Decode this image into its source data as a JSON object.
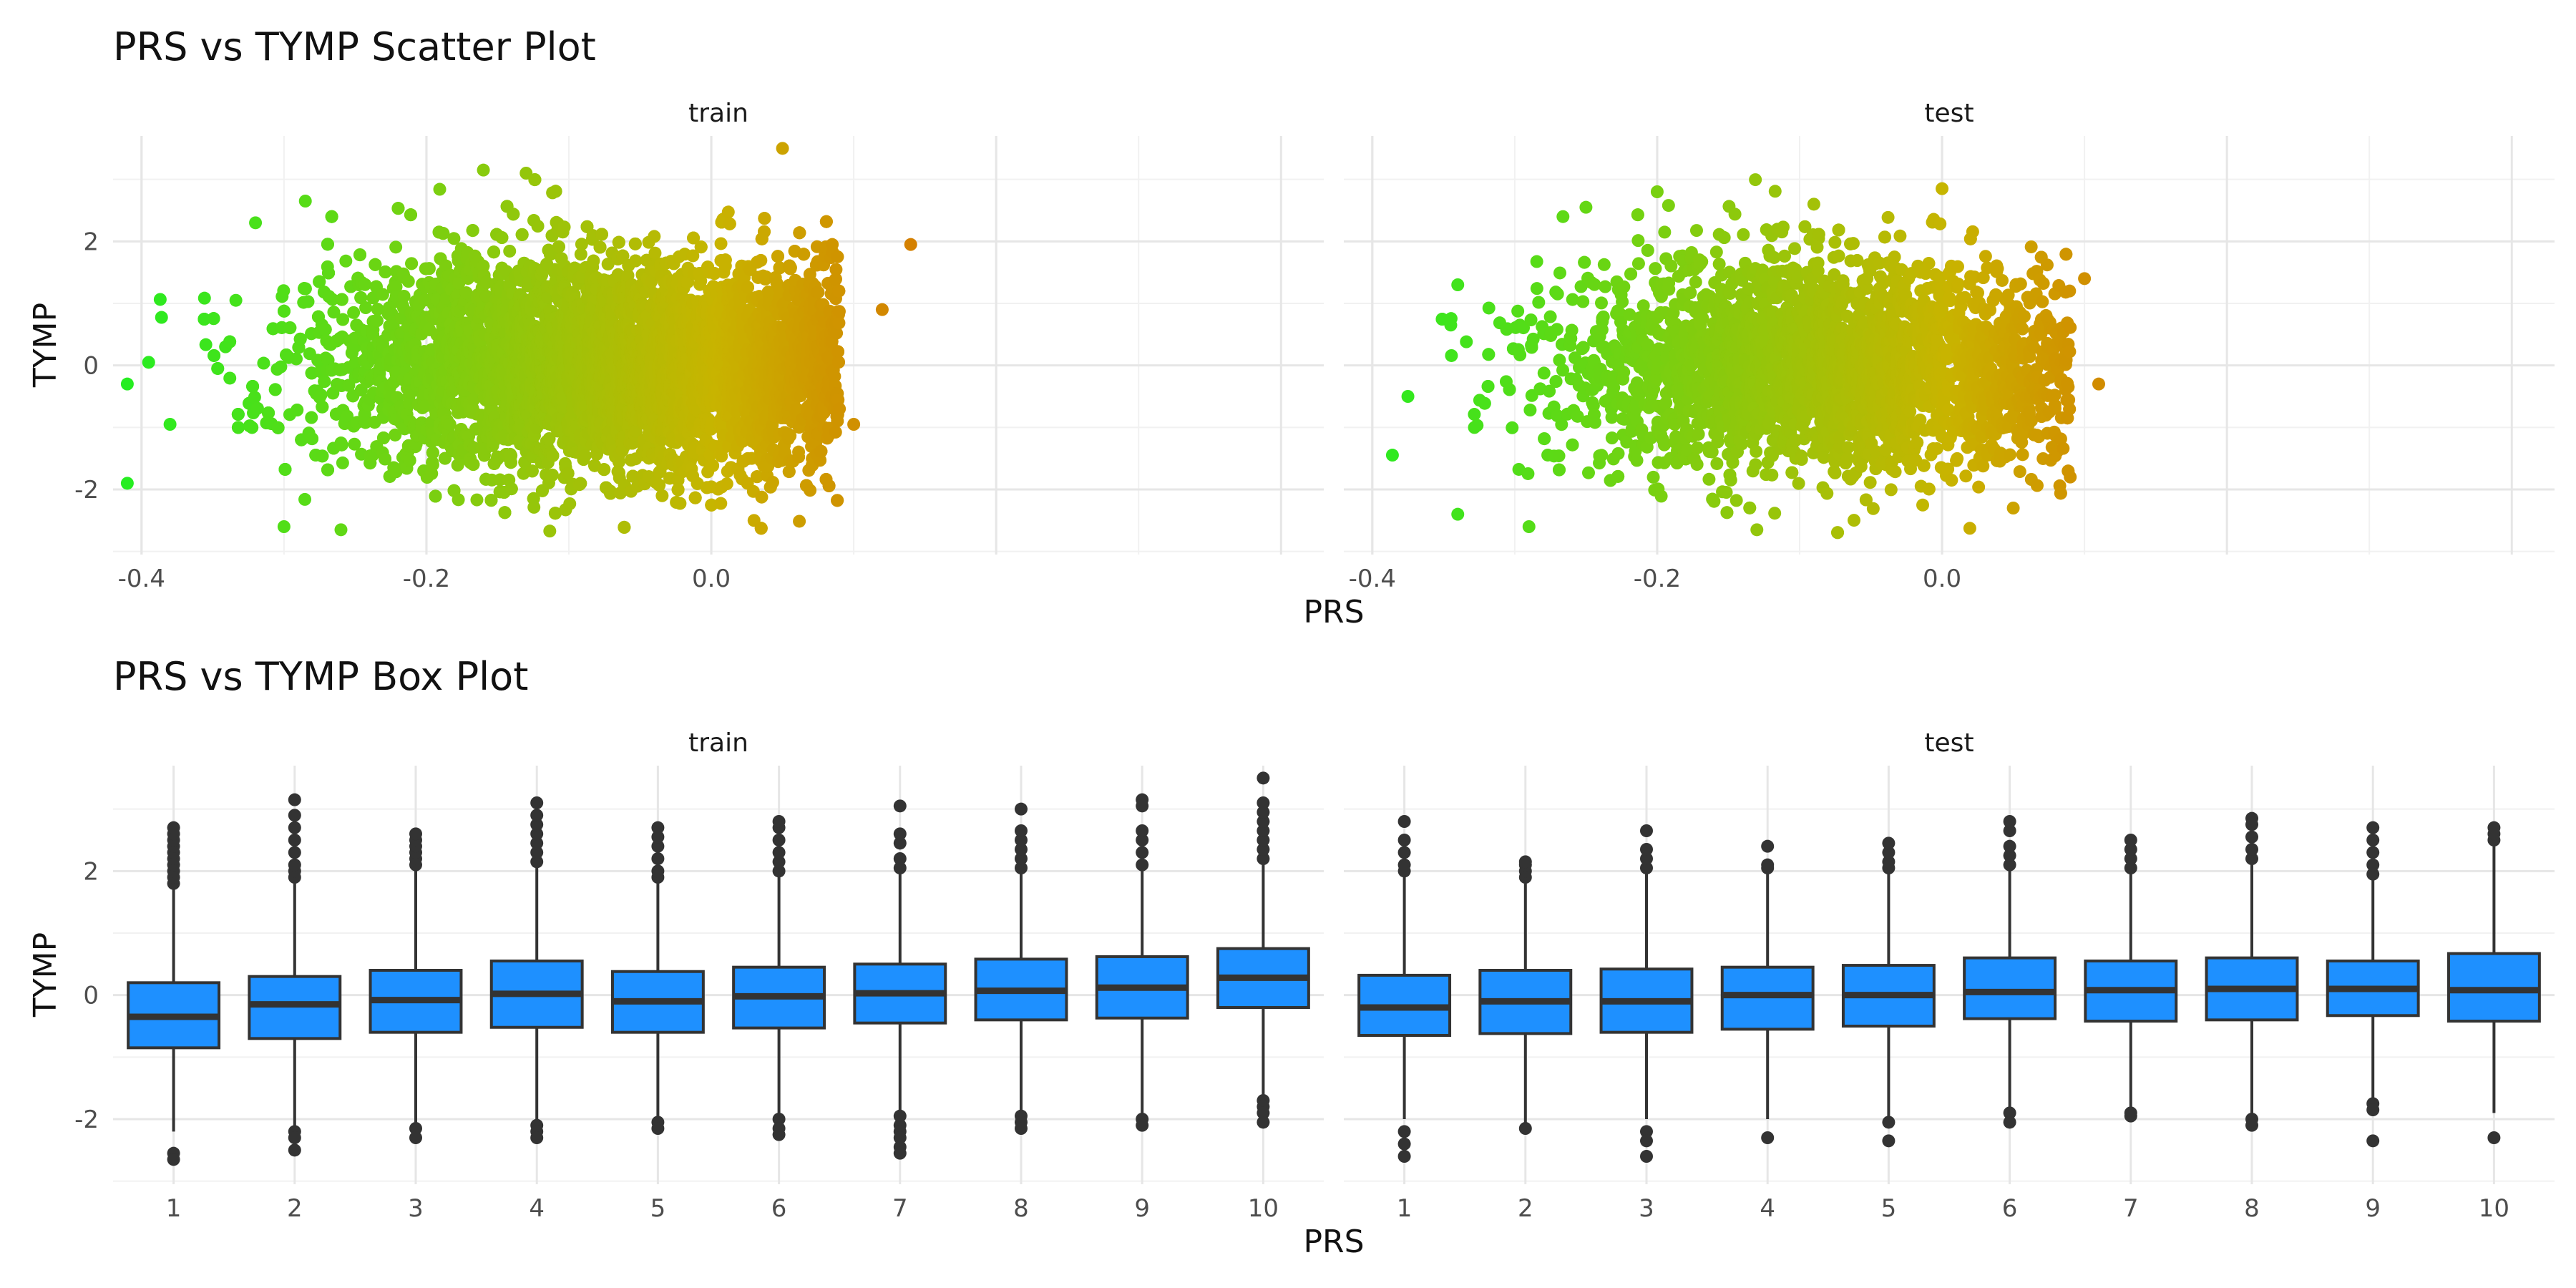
{
  "chart_data": [
    {
      "type": "scatter",
      "title": "PRS vs TYMP Scatter Plot",
      "xlabel": "PRS",
      "ylabel": "TYMP",
      "facets": [
        "train",
        "test"
      ],
      "xlim": [
        -0.42,
        0.43
      ],
      "ylim": [
        -3.05,
        3.7
      ],
      "x_ticks": [
        -0.4,
        -0.2,
        0.0
      ],
      "x_tick_labels": [
        "-0.4",
        "-0.2",
        "0.0"
      ],
      "y_ticks": [
        -2,
        0,
        2
      ],
      "y_tick_labels": [
        "-2",
        "0",
        "2"
      ],
      "grid": true,
      "color_gradient": {
        "low": "#22ee22",
        "mid": "#c8b400",
        "high": "#ee1100"
      },
      "series": [
        {
          "facet": "train",
          "distribution": {
            "n": 9000,
            "x_mean": -0.07,
            "x_sd": 0.095,
            "y_mean": 0.0,
            "y_sd": 0.85
          },
          "points": [
            {
              "x": -0.41,
              "y": -0.3
            },
            {
              "x": -0.41,
              "y": -1.9
            },
            {
              "x": -0.395,
              "y": 0.05
            },
            {
              "x": -0.38,
              "y": -0.95
            },
            {
              "x": -0.32,
              "y": 2.3
            },
            {
              "x": -0.3,
              "y": -2.6
            },
            {
              "x": -0.285,
              "y": 2.65
            },
            {
              "x": -0.26,
              "y": -2.65
            },
            {
              "x": -0.16,
              "y": 3.15
            },
            {
              "x": -0.13,
              "y": 3.1
            },
            {
              "x": 0.05,
              "y": 3.5
            },
            {
              "x": 0.03,
              "y": -2.5
            },
            {
              "x": 0.1,
              "y": -0.95
            },
            {
              "x": 0.12,
              "y": 0.9
            },
            {
              "x": 0.14,
              "y": 1.95
            }
          ]
        },
        {
          "facet": "test",
          "distribution": {
            "n": 3500,
            "x_mean": -0.08,
            "x_sd": 0.09,
            "y_mean": 0.0,
            "y_sd": 0.85
          },
          "points": [
            {
              "x": -0.375,
              "y": -0.5
            },
            {
              "x": -0.34,
              "y": -2.4
            },
            {
              "x": -0.34,
              "y": 1.3
            },
            {
              "x": -0.29,
              "y": -2.6
            },
            {
              "x": -0.25,
              "y": 2.55
            },
            {
              "x": -0.2,
              "y": 2.8
            },
            {
              "x": -0.13,
              "y": -2.65
            },
            {
              "x": -0.09,
              "y": 2.6
            },
            {
              "x": 0.0,
              "y": 2.85
            },
            {
              "x": 0.05,
              "y": -2.3
            },
            {
              "x": 0.09,
              "y": -1.8
            },
            {
              "x": 0.1,
              "y": 1.4
            },
            {
              "x": 0.11,
              "y": -0.3
            }
          ]
        }
      ]
    },
    {
      "type": "box",
      "title": "PRS vs TYMP Box Plot",
      "xlabel": "PRS",
      "ylabel": "TYMP",
      "facets": [
        "train",
        "test"
      ],
      "categories": [
        "1",
        "2",
        "3",
        "4",
        "5",
        "6",
        "7",
        "8",
        "9",
        "10"
      ],
      "ylim": [
        -3.05,
        3.7
      ],
      "y_ticks": [
        -2,
        0,
        2
      ],
      "y_tick_labels": [
        "-2",
        "0",
        "2"
      ],
      "grid": true,
      "box_fill": "#1e90ff",
      "series": [
        {
          "facet": "train",
          "boxes": [
            {
              "q1": -0.85,
              "median": -0.35,
              "q3": 0.2,
              "lower": -2.2,
              "upper": 1.7,
              "outliers": [
                -2.55,
                -2.65,
                1.8,
                1.9,
                2.0,
                2.1,
                2.2,
                2.3,
                2.4,
                2.5,
                2.6,
                2.7
              ]
            },
            {
              "q1": -0.7,
              "median": -0.15,
              "q3": 0.3,
              "lower": -2.1,
              "upper": 1.8,
              "outliers": [
                -2.2,
                -2.3,
                -2.5,
                1.9,
                2.0,
                2.1,
                2.3,
                2.5,
                2.7,
                2.9,
                3.15
              ]
            },
            {
              "q1": -0.6,
              "median": -0.08,
              "q3": 0.4,
              "lower": -2.05,
              "upper": 2.0,
              "outliers": [
                -2.15,
                -2.3,
                2.1,
                2.2,
                2.3,
                2.4,
                2.5,
                2.6
              ]
            },
            {
              "q1": -0.52,
              "median": 0.02,
              "q3": 0.55,
              "lower": -2.0,
              "upper": 2.05,
              "outliers": [
                -2.1,
                -2.2,
                -2.3,
                2.15,
                2.3,
                2.45,
                2.6,
                2.75,
                2.9,
                3.1
              ]
            },
            {
              "q1": -0.6,
              "median": -0.1,
              "q3": 0.38,
              "lower": -2.0,
              "upper": 1.8,
              "outliers": [
                -2.05,
                -2.15,
                1.9,
                2.0,
                2.2,
                2.4,
                2.55,
                2.7
              ]
            },
            {
              "q1": -0.53,
              "median": -0.02,
              "q3": 0.45,
              "lower": -1.9,
              "upper": 1.9,
              "outliers": [
                -2.0,
                -2.15,
                -2.25,
                2.0,
                2.15,
                2.3,
                2.5,
                2.7,
                2.8
              ]
            },
            {
              "q1": -0.45,
              "median": 0.03,
              "q3": 0.5,
              "lower": -1.9,
              "upper": 1.95,
              "outliers": [
                -1.95,
                -2.1,
                -2.2,
                -2.3,
                -2.45,
                -2.55,
                2.05,
                2.2,
                2.45,
                2.6,
                3.05
              ]
            },
            {
              "q1": -0.4,
              "median": 0.07,
              "q3": 0.58,
              "lower": -1.85,
              "upper": 2.0,
              "outliers": [
                -1.95,
                -2.05,
                -2.15,
                2.05,
                2.2,
                2.35,
                2.5,
                2.65,
                3.0
              ]
            },
            {
              "q1": -0.37,
              "median": 0.12,
              "q3": 0.62,
              "lower": -1.95,
              "upper": 2.05,
              "outliers": [
                -2.0,
                -2.1,
                2.1,
                2.3,
                2.5,
                2.65,
                3.05,
                3.15
              ]
            },
            {
              "q1": -0.2,
              "median": 0.28,
              "q3": 0.75,
              "lower": -1.6,
              "upper": 2.1,
              "outliers": [
                -1.7,
                -1.8,
                -1.9,
                -2.05,
                2.2,
                2.35,
                2.5,
                2.65,
                2.8,
                2.95,
                3.1,
                3.5
              ]
            }
          ]
        },
        {
          "facet": "test",
          "boxes": [
            {
              "q1": -0.65,
              "median": -0.2,
              "q3": 0.32,
              "lower": -2.0,
              "upper": 1.9,
              "outliers": [
                -2.2,
                -2.4,
                -2.6,
                2.0,
                2.1,
                2.3,
                2.5,
                2.8
              ]
            },
            {
              "q1": -0.62,
              "median": -0.1,
              "q3": 0.4,
              "lower": -2.1,
              "upper": 1.8,
              "outliers": [
                -2.15,
                1.9,
                2.0,
                2.1,
                2.15
              ]
            },
            {
              "q1": -0.6,
              "median": -0.1,
              "q3": 0.42,
              "lower": -2.0,
              "upper": 2.0,
              "outliers": [
                -2.2,
                -2.35,
                -2.6,
                2.05,
                2.2,
                2.35,
                2.65
              ]
            },
            {
              "q1": -0.55,
              "median": 0.0,
              "q3": 0.45,
              "lower": -2.0,
              "upper": 1.95,
              "outliers": [
                -2.3,
                2.05,
                2.1,
                2.4
              ]
            },
            {
              "q1": -0.5,
              "median": 0.0,
              "q3": 0.48,
              "lower": -2.0,
              "upper": 2.0,
              "outliers": [
                -2.05,
                -2.35,
                2.05,
                2.15,
                2.3,
                2.45
              ]
            },
            {
              "q1": -0.38,
              "median": 0.05,
              "q3": 0.6,
              "lower": -1.85,
              "upper": 2.0,
              "outliers": [
                -1.9,
                -2.05,
                2.1,
                2.25,
                2.4,
                2.65,
                2.8
              ]
            },
            {
              "q1": -0.42,
              "median": 0.08,
              "q3": 0.55,
              "lower": -1.85,
              "upper": 2.0,
              "outliers": [
                -1.9,
                -1.95,
                2.05,
                2.2,
                2.35,
                2.5
              ]
            },
            {
              "q1": -0.4,
              "median": 0.1,
              "q3": 0.6,
              "lower": -1.95,
              "upper": 2.1,
              "outliers": [
                -2.0,
                -2.1,
                2.2,
                2.35,
                2.55,
                2.75,
                2.85
              ]
            },
            {
              "q1": -0.33,
              "median": 0.1,
              "q3": 0.55,
              "lower": -1.65,
              "upper": 1.85,
              "outliers": [
                -1.75,
                -1.85,
                -2.35,
                1.95,
                2.1,
                2.3,
                2.5,
                2.7
              ]
            },
            {
              "q1": -0.42,
              "median": 0.08,
              "q3": 0.67,
              "lower": -1.9,
              "upper": 2.4,
              "outliers": [
                -2.3,
                2.5,
                2.6,
                2.7
              ]
            }
          ]
        }
      ]
    }
  ]
}
